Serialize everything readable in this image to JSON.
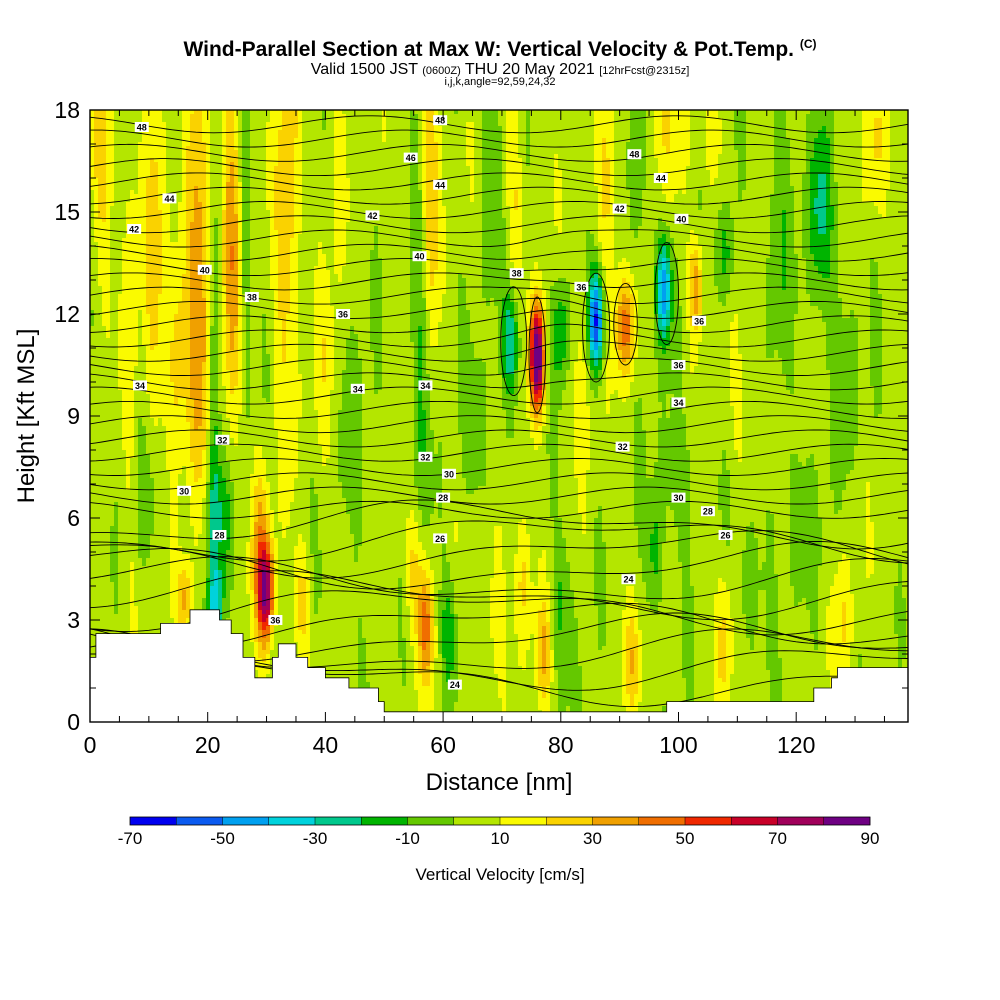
{
  "chart_data": {
    "type": "heatmap",
    "title": "Wind-Parallel Section at Max W: Vertical Velocity & Pot.Temp.",
    "title_mark": "(C)",
    "subtitle_valid": "Valid 1500 JST",
    "subtitle_utc": "(0600Z)",
    "subtitle_date": "THU 20 May 2021",
    "subtitle_fcst": "[12hrFcst@2315z]",
    "subtitle2": "i,j,k,angle=92,59,24,32",
    "xlabel": "Distance [nm]",
    "ylabel": "Height [Kft MSL]",
    "xlim": [
      0,
      139
    ],
    "ylim": [
      0,
      18
    ],
    "x_ticks": [
      "0",
      "20",
      "40",
      "60",
      "80",
      "100",
      "120"
    ],
    "y_ticks": [
      "0",
      "3",
      "6",
      "9",
      "12",
      "15",
      "18"
    ],
    "colorbar": {
      "label": "Vertical Velocity [cm/s]",
      "range": [
        -70,
        90
      ],
      "tick_labels": [
        "-70",
        "-50",
        "-30",
        "-10",
        "10",
        "30",
        "50",
        "70",
        "90"
      ],
      "colors": [
        "#0000f0",
        "#0a5af0",
        "#00a0f0",
        "#00d2dc",
        "#00c88c",
        "#00b400",
        "#64c800",
        "#b4e600",
        "#fafa00",
        "#fad200",
        "#f0a000",
        "#f06e00",
        "#f02800",
        "#c80028",
        "#a0005a",
        "#6e0082"
      ]
    },
    "contour_variable": "Potential Temperature (C)",
    "contour_labels": [
      {
        "text": "48",
        "x": 8.8,
        "y": 17.5
      },
      {
        "text": "48",
        "x": 59.5,
        "y": 17.7
      },
      {
        "text": "48",
        "x": 92.5,
        "y": 16.7
      },
      {
        "text": "46",
        "x": 54.5,
        "y": 16.6
      },
      {
        "text": "44",
        "x": 13.5,
        "y": 15.4
      },
      {
        "text": "44",
        "x": 59.5,
        "y": 15.8
      },
      {
        "text": "44",
        "x": 97,
        "y": 16
      },
      {
        "text": "42",
        "x": 7.5,
        "y": 14.5
      },
      {
        "text": "42",
        "x": 48,
        "y": 14.9
      },
      {
        "text": "42",
        "x": 90,
        "y": 15.1
      },
      {
        "text": "40",
        "x": 19.5,
        "y": 13.3
      },
      {
        "text": "40",
        "x": 56,
        "y": 13.7
      },
      {
        "text": "40",
        "x": 100.5,
        "y": 14.8
      },
      {
        "text": "38",
        "x": 27.5,
        "y": 12.5
      },
      {
        "text": "38",
        "x": 72.5,
        "y": 13.2
      },
      {
        "text": "36",
        "x": 43,
        "y": 12
      },
      {
        "text": "36",
        "x": 83.5,
        "y": 12.8
      },
      {
        "text": "36",
        "x": 103.5,
        "y": 11.8
      },
      {
        "text": "36",
        "x": 100,
        "y": 10.5
      },
      {
        "text": "34",
        "x": 8.5,
        "y": 9.9
      },
      {
        "text": "34",
        "x": 45.5,
        "y": 9.8
      },
      {
        "text": "34",
        "x": 57,
        "y": 9.9
      },
      {
        "text": "34",
        "x": 100,
        "y": 9.4
      },
      {
        "text": "32",
        "x": 22.5,
        "y": 8.3
      },
      {
        "text": "32",
        "x": 57,
        "y": 7.8
      },
      {
        "text": "32",
        "x": 90.5,
        "y": 8.1
      },
      {
        "text": "30",
        "x": 16,
        "y": 6.8
      },
      {
        "text": "30",
        "x": 61,
        "y": 7.3
      },
      {
        "text": "30",
        "x": 100,
        "y": 6.6
      },
      {
        "text": "28",
        "x": 22,
        "y": 5.5
      },
      {
        "text": "28",
        "x": 60,
        "y": 6.6
      },
      {
        "text": "28",
        "x": 105,
        "y": 6.2
      },
      {
        "text": "26",
        "x": 59.5,
        "y": 5.4
      },
      {
        "text": "26",
        "x": 108,
        "y": 5.5
      },
      {
        "text": "24",
        "x": 91.5,
        "y": 4.2
      },
      {
        "text": "24",
        "x": 62,
        "y": 1.1
      },
      {
        "text": "36",
        "x": 31.5,
        "y": 3
      }
    ],
    "terrain_kft": [
      [
        0,
        1.9
      ],
      [
        1,
        2.6
      ],
      [
        11,
        2.6
      ],
      [
        12,
        2.9
      ],
      [
        16,
        2.9
      ],
      [
        17,
        3.3
      ],
      [
        21,
        3.3
      ],
      [
        22,
        3
      ],
      [
        24,
        2.6
      ],
      [
        26,
        1.9
      ],
      [
        28,
        1.3
      ],
      [
        30,
        1.3
      ],
      [
        31,
        1.9
      ],
      [
        32,
        2.3
      ],
      [
        34,
        2.3
      ],
      [
        35,
        1.9
      ],
      [
        37,
        1.6
      ],
      [
        40,
        1.3
      ],
      [
        44,
        1
      ],
      [
        49,
        0.6
      ],
      [
        50,
        0.3
      ],
      [
        97,
        0.3
      ],
      [
        98,
        0.6
      ],
      [
        120,
        0.6
      ],
      [
        123,
        1
      ],
      [
        126,
        1.3
      ],
      [
        127,
        1.6
      ],
      [
        139,
        1.6
      ]
    ],
    "w_cells": [
      {
        "x": 2,
        "y": 17,
        "sx": 2,
        "sy": 4,
        "w": 20
      },
      {
        "x": 7,
        "y": 12,
        "sx": 1.3,
        "sy": 6,
        "w": 15
      },
      {
        "x": 11,
        "y": 14,
        "sx": 1.6,
        "sy": 6,
        "w": 20
      },
      {
        "x": 18.5,
        "y": 13,
        "sx": 1.8,
        "sy": 6,
        "w": 35
      },
      {
        "x": 15,
        "y": 11,
        "sx": 1.8,
        "sy": 3,
        "w": 25
      },
      {
        "x": 21,
        "y": 8,
        "sx": 0.9,
        "sy": 6,
        "w": -22
      },
      {
        "x": 24,
        "y": 14,
        "sx": 1.6,
        "sy": 5,
        "w": 30
      },
      {
        "x": 26.5,
        "y": 15,
        "sx": 0.8,
        "sy": 5,
        "w": -15
      },
      {
        "x": 33.5,
        "y": 15,
        "sx": 2,
        "sy": 6,
        "w": 25
      },
      {
        "x": 42,
        "y": 16,
        "sx": 1.5,
        "sy": 2.5,
        "w": 15
      },
      {
        "x": 58,
        "y": 16,
        "sx": 1.5,
        "sy": 4,
        "w": 25
      },
      {
        "x": 40,
        "y": 10.5,
        "sx": 2,
        "sy": 3,
        "w": 10
      },
      {
        "x": 45,
        "y": 8.5,
        "sx": 2.5,
        "sy": 3,
        "w": -8
      },
      {
        "x": 56,
        "y": 10,
        "sx": 1.6,
        "sy": 5,
        "w": -15
      },
      {
        "x": 30,
        "y": 3.8,
        "sx": 1.3,
        "sy": 1.3,
        "w": 65
      },
      {
        "x": 29,
        "y": 5,
        "sx": 1.5,
        "sy": 2.5,
        "w": 30
      },
      {
        "x": 16,
        "y": 3.6,
        "sx": 1.3,
        "sy": 1.1,
        "w": 30
      },
      {
        "x": 21.5,
        "y": 3.4,
        "sx": 1.2,
        "sy": 1.2,
        "w": -35
      },
      {
        "x": 36,
        "y": 3.5,
        "sx": 1.4,
        "sy": 1.5,
        "w": 20
      },
      {
        "x": 22,
        "y": 6,
        "sx": 2,
        "sy": 1.5,
        "w": -20
      },
      {
        "x": 57,
        "y": 2.8,
        "sx": 1.2,
        "sy": 1.6,
        "w": 40
      },
      {
        "x": 55,
        "y": 4.5,
        "sx": 1.6,
        "sy": 1.8,
        "w": 20
      },
      {
        "x": 61,
        "y": 2.6,
        "sx": 1.4,
        "sy": 1.6,
        "w": -20
      },
      {
        "x": 69,
        "y": 3,
        "sx": 1.5,
        "sy": 2,
        "w": 15
      },
      {
        "x": 73.5,
        "y": 4.2,
        "sx": 1.5,
        "sy": 2,
        "w": 20
      },
      {
        "x": 77,
        "y": 2,
        "sx": 1.3,
        "sy": 1.5,
        "w": 25
      },
      {
        "x": 80,
        "y": 3.5,
        "sx": 1.5,
        "sy": 2,
        "w": -15
      },
      {
        "x": 92,
        "y": 1.8,
        "sx": 1.5,
        "sy": 1.4,
        "w": 20
      },
      {
        "x": 108,
        "y": 2.5,
        "sx": 1.5,
        "sy": 2,
        "w": 20
      },
      {
        "x": 112,
        "y": 4,
        "sx": 2.5,
        "sy": 2.2,
        "w": -12
      },
      {
        "x": 128,
        "y": 3,
        "sx": 1.5,
        "sy": 2,
        "w": 15
      },
      {
        "x": 96,
        "y": 5,
        "sx": 1.2,
        "sy": 1.6,
        "w": -20
      },
      {
        "x": 76,
        "y": 10.7,
        "sx": 1.2,
        "sy": 1.5,
        "w": 90
      },
      {
        "x": 71.5,
        "y": 11.2,
        "sx": 1.4,
        "sy": 1.5,
        "w": -35
      },
      {
        "x": 80,
        "y": 11.5,
        "sx": 1.3,
        "sy": 1.5,
        "w": -25
      },
      {
        "x": 86,
        "y": 11.8,
        "sx": 1.2,
        "sy": 1.3,
        "w": -65
      },
      {
        "x": 91,
        "y": 11.6,
        "sx": 1.6,
        "sy": 1.4,
        "w": 40
      },
      {
        "x": 97.5,
        "y": 12.7,
        "sx": 1.2,
        "sy": 1.4,
        "w": -50
      },
      {
        "x": 103,
        "y": 12.8,
        "sx": 1.1,
        "sy": 1.3,
        "w": 35
      },
      {
        "x": 108,
        "y": 13.8,
        "sx": 1.5,
        "sy": 1.4,
        "w": -20
      },
      {
        "x": 83.5,
        "y": 10,
        "sx": 2,
        "sy": 2.5,
        "w": 10
      },
      {
        "x": 88,
        "y": 16,
        "sx": 1.5,
        "sy": 3,
        "w": 20
      },
      {
        "x": 93.5,
        "y": 16.5,
        "sx": 1.5,
        "sy": 2.5,
        "w": -15
      },
      {
        "x": 97.5,
        "y": 17.5,
        "sx": 3,
        "sy": 2,
        "w": 15
      },
      {
        "x": 72,
        "y": 15.5,
        "sx": 1.3,
        "sy": 3,
        "w": 15
      },
      {
        "x": 68,
        "y": 16,
        "sx": 1.5,
        "sy": 3,
        "w": -12
      },
      {
        "x": 106,
        "y": 17,
        "sx": 2,
        "sy": 2,
        "w": 10
      },
      {
        "x": 117,
        "y": 14,
        "sx": 2,
        "sy": 4,
        "w": -12
      },
      {
        "x": 124,
        "y": 15,
        "sx": 2,
        "sy": 2.5,
        "w": -25
      },
      {
        "x": 128,
        "y": 11,
        "sx": 3,
        "sy": 3,
        "w": -8
      },
      {
        "x": 133,
        "y": 17,
        "sx": 2,
        "sy": 2,
        "w": 15
      },
      {
        "x": 66,
        "y": 8.5,
        "sx": 2.5,
        "sy": 2,
        "w": -10
      },
      {
        "x": 100,
        "y": 7,
        "sx": 4,
        "sy": 1.8,
        "w": -10
      },
      {
        "x": 112,
        "y": 9,
        "sx": 3,
        "sy": 2.5,
        "w": 8
      },
      {
        "x": 10,
        "y": 6.5,
        "sx": 3,
        "sy": 2,
        "w": -10
      },
      {
        "x": 120,
        "y": 6,
        "sx": 4,
        "sy": 2,
        "w": -8
      }
    ]
  }
}
